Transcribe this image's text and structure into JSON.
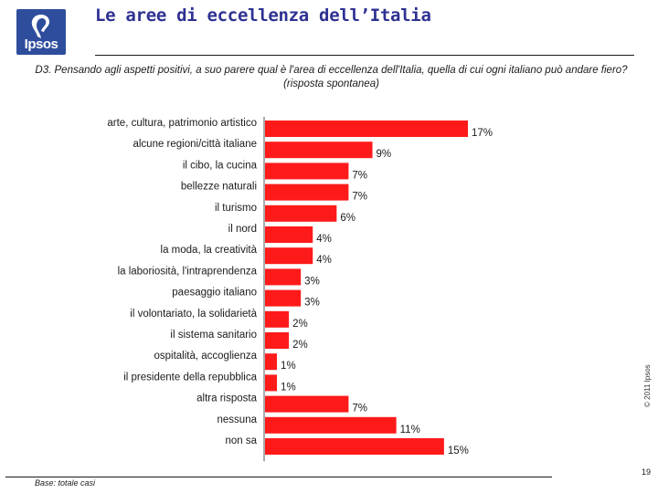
{
  "header": {
    "title": "Le aree di eccellenza dell’Italia",
    "logo_text": "Ipsos",
    "question": "D3. Pensando agli aspetti positivi, a suo parere qual è l'area di eccellenza dell'Italia, quella di cui ogni italiano può andare fiero? (risposta spontanea)"
  },
  "footer": {
    "base": "Base: totale casi",
    "page_number": "19",
    "copyright": "© 2011 Ipsos"
  },
  "colors": {
    "bar": "#ff1a1a",
    "logo": "#2e4d9c",
    "title": "#2e3192"
  },
  "chart_data": {
    "type": "bar",
    "orientation": "horizontal",
    "categories": [
      "arte, cultura, patrimonio artistico",
      "alcune regioni/città italiane",
      "il cibo, la cucina",
      "bellezze naturali",
      "il turismo",
      "il nord",
      "la moda, la creatività",
      "la laboriosità, l'intraprendenza",
      "paesaggio italiano",
      "il volontariato, la solidarietà",
      "il sistema sanitario",
      "ospitalità, accoglienza",
      "il presidente della repubblica",
      "altra risposta",
      "nessuna",
      "non sa"
    ],
    "values": [
      17,
      9,
      7,
      7,
      6,
      4,
      4,
      3,
      3,
      2,
      2,
      1,
      1,
      7,
      11,
      15
    ],
    "value_labels": [
      "17%",
      "9%",
      "7%",
      "7%",
      "6%",
      "4%",
      "4%",
      "3%",
      "3%",
      "2%",
      "2%",
      "1%",
      "1%",
      "7%",
      "11%",
      "15%"
    ],
    "unit": "%",
    "xlim": [
      0,
      17
    ],
    "grid": false,
    "legend": "none"
  }
}
